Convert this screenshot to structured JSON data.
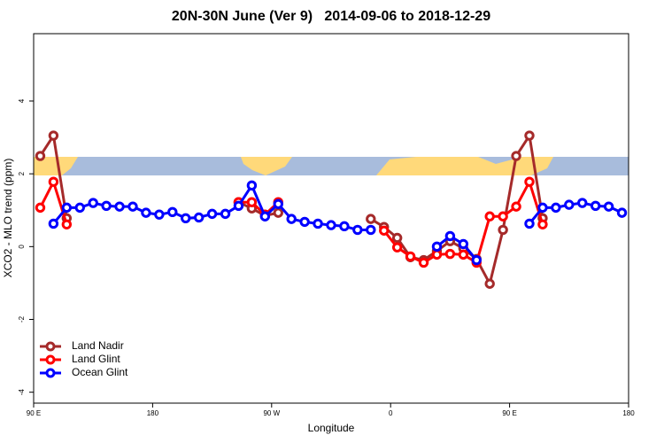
{
  "chart_data": {
    "type": "line",
    "title": "20N-30N June (Ver 9)   2014-09-06 to 2018-12-29",
    "x_label": "Longitude",
    "y_label": "XCO2 - MLO trend (ppm)",
    "x": [
      95,
      105,
      115,
      125,
      135,
      145,
      155,
      165,
      175,
      185,
      195,
      205,
      215,
      225,
      235,
      245,
      255,
      265,
      275,
      285,
      295,
      305,
      315,
      325,
      335,
      345,
      355,
      365,
      375,
      385,
      395,
      405,
      415,
      425,
      435,
      445,
      455,
      465,
      475,
      485,
      495,
      505,
      515,
      525,
      535
    ],
    "series": [
      {
        "name": "Land Nadir",
        "color": "#a52a2a",
        "values": [
          2.49,
          3.05,
          0.78,
          null,
          null,
          null,
          null,
          null,
          null,
          null,
          null,
          null,
          null,
          null,
          null,
          1.22,
          1.05,
          0.85,
          0.93,
          null,
          null,
          null,
          null,
          null,
          null,
          0.76,
          0.54,
          0.24,
          -0.29,
          -0.37,
          -0.12,
          0.15,
          -0.05,
          -0.34,
          -1.02,
          0.46,
          2.49,
          3.05,
          0.78,
          null,
          null,
          null,
          null,
          null,
          null
        ]
      },
      {
        "name": "Land Glint",
        "color": "#ff0000",
        "values": [
          1.07,
          1.78,
          0.61,
          null,
          null,
          null,
          null,
          null,
          null,
          null,
          null,
          null,
          null,
          null,
          null,
          1.22,
          1.22,
          0.88,
          1.22,
          null,
          null,
          null,
          null,
          null,
          null,
          null,
          0.44,
          -0.02,
          -0.27,
          -0.44,
          -0.22,
          -0.2,
          -0.22,
          -0.44,
          0.83,
          0.83,
          1.1,
          1.78,
          0.61,
          null,
          null,
          null,
          null,
          null,
          null
        ]
      },
      {
        "name": "Ocean Glint",
        "color": "#0000ff",
        "values": [
          null,
          0.63,
          1.07,
          1.07,
          1.2,
          1.12,
          1.1,
          1.1,
          0.93,
          0.88,
          0.95,
          0.78,
          0.8,
          0.9,
          0.9,
          1.12,
          1.68,
          0.83,
          1.17,
          0.76,
          0.68,
          0.63,
          0.59,
          0.56,
          0.46,
          0.46,
          null,
          null,
          null,
          null,
          0,
          0.29,
          0.07,
          -0.37,
          null,
          null,
          null,
          0.63,
          1.07,
          1.07,
          1.15,
          1.2,
          1.12,
          1.1,
          0.93
        ]
      }
    ],
    "xlim": [
      90,
      540
    ],
    "ylim": [
      -4.3,
      5.85
    ],
    "xticks": [
      90,
      180,
      {
        "value": 270,
        "label": "90 W"
      },
      {
        "value": 360,
        "label": "0"
      },
      {
        "value": 450,
        "label": "90 E"
      },
      {
        "value": 540,
        "label": "180"
      }
    ],
    "xtick_first_label": "90 E",
    "yticks": [
      -4,
      -2,
      0,
      2,
      4
    ],
    "legend": "bottom-left"
  }
}
